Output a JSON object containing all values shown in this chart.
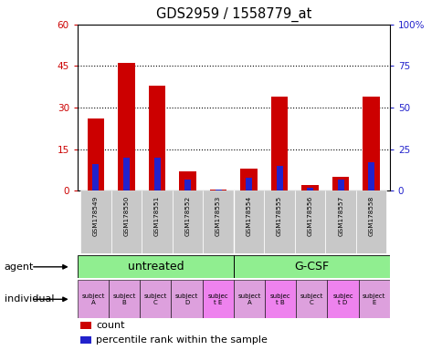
{
  "title": "GDS2959 / 1558779_at",
  "samples": [
    "GSM178549",
    "GSM178550",
    "GSM178551",
    "GSM178552",
    "GSM178553",
    "GSM178554",
    "GSM178555",
    "GSM178556",
    "GSM178557",
    "GSM178558"
  ],
  "counts": [
    26,
    46,
    38,
    7,
    0.5,
    8,
    34,
    2,
    5,
    34
  ],
  "percentile_ranks": [
    16,
    20,
    20,
    7,
    0.5,
    8,
    15,
    2,
    7,
    17
  ],
  "ylim_left": [
    0,
    60
  ],
  "ylim_right": [
    0,
    100
  ],
  "yticks_left": [
    0,
    15,
    30,
    45,
    60
  ],
  "yticks_right": [
    0,
    25,
    50,
    75,
    100
  ],
  "individuals": [
    "subject\nA",
    "subject\nB",
    "subject\nC",
    "subject\nD",
    "subjec\nt E",
    "subject\nA",
    "subjec\nt B",
    "subject\nC",
    "subjec\nt D",
    "subject\nE"
  ],
  "individual_colors": [
    "#dda0dd",
    "#dda0dd",
    "#dda0dd",
    "#dda0dd",
    "#ee82ee",
    "#dda0dd",
    "#ee82ee",
    "#dda0dd",
    "#ee82ee",
    "#dda0dd"
  ],
  "bar_color_red": "#cc0000",
  "bar_color_blue": "#2222cc",
  "legend_count_label": "count",
  "legend_percentile_label": "percentile rank within the sample",
  "agent_label": "agent",
  "individual_label": "individual",
  "bg_color": "#ffffff",
  "sample_area_color": "#c8c8c8",
  "agent_color": "#90ee90",
  "dotted_yticks": [
    15,
    30,
    45
  ]
}
